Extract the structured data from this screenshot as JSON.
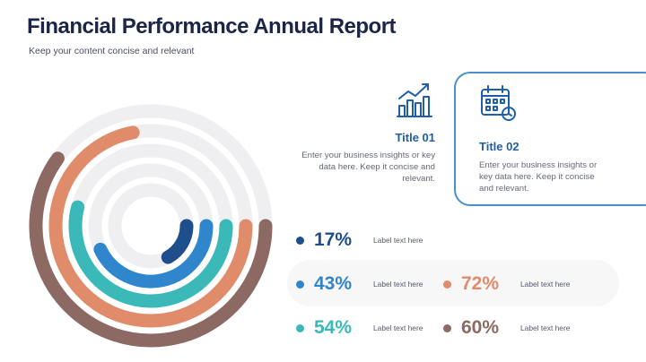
{
  "header": {
    "title": "Financial Performance Annual Report",
    "subtitle": "Keep your content concise and relevant"
  },
  "cards": [
    {
      "title": "Title 01",
      "text": "Enter your business insights or key data here. Keep it concise and relevant.",
      "icon": "growth-chart-icon"
    },
    {
      "title": "Title 02",
      "text": "Enter your business insights or key data here. Keep it concise and relevant.",
      "icon": "calendar-icon"
    }
  ],
  "stats": [
    {
      "value": "17%",
      "label": "Label text here",
      "color": "#1f4e8c",
      "fraction": 0.17
    },
    {
      "value": "43%",
      "label": "Label text here",
      "color": "#2f86cc",
      "fraction": 0.43
    },
    {
      "value": "54%",
      "label": "Label text here",
      "color": "#3bb9b8",
      "fraction": 0.54
    },
    {
      "value": "72%",
      "label": "Label text here",
      "color": "#e08c6a",
      "fraction": 0.72
    },
    {
      "value": "60%",
      "label": "Label text here",
      "color": "#8c6a63",
      "fraction": 0.6
    }
  ]
}
